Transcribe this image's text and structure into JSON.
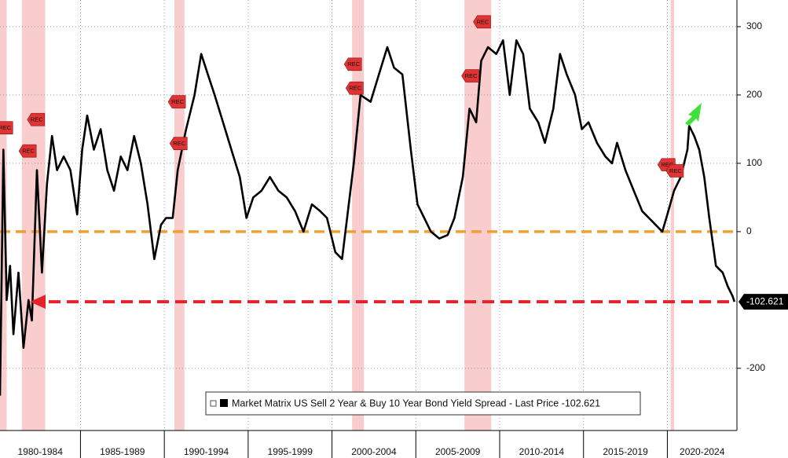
{
  "chart_data": {
    "type": "line",
    "series": [
      {
        "name": "Market Matrix US Sell 2 Year & Buy 10 Year Bond Yield Spread - Last Price -102.621",
        "color": "#000000",
        "x": [
          1980.2,
          1980.4,
          1980.6,
          1980.8,
          1981.0,
          1981.3,
          1981.6,
          1981.9,
          1982.1,
          1982.4,
          1982.7,
          1983.0,
          1983.3,
          1983.6,
          1984.0,
          1984.4,
          1984.8,
          1985.1,
          1985.4,
          1985.8,
          1986.2,
          1986.6,
          1987.0,
          1987.4,
          1987.8,
          1988.2,
          1988.6,
          1989.0,
          1989.4,
          1989.8,
          1990.1,
          1990.5,
          1990.8,
          1991.3,
          1991.8,
          1992.2,
          1992.6,
          1993.0,
          1993.5,
          1994.0,
          1994.5,
          1994.9,
          1995.3,
          1995.8,
          1996.3,
          1996.8,
          1997.3,
          1997.8,
          1998.3,
          1998.8,
          1999.3,
          1999.7,
          2000.2,
          2000.6,
          2000.9,
          2001.3,
          2001.7,
          2002.3,
          2002.8,
          2003.3,
          2003.7,
          2004.2,
          2004.7,
          2005.1,
          2005.5,
          2005.9,
          2006.4,
          2006.9,
          2007.3,
          2007.8,
          2008.2,
          2008.6,
          2008.9,
          2009.3,
          2009.8,
          2010.2,
          2010.6,
          2011.0,
          2011.4,
          2011.8,
          2012.3,
          2012.7,
          2013.2,
          2013.6,
          2014.0,
          2014.5,
          2014.9,
          2015.3,
          2015.8,
          2016.3,
          2016.7,
          2017.0,
          2017.5,
          2018.0,
          2018.5,
          2018.9,
          2019.3,
          2019.7,
          2020.0,
          2020.4,
          2020.8,
          2021.2,
          2021.3,
          2021.6,
          2021.9,
          2022.2,
          2022.5,
          2022.9,
          2023.3,
          2023.6,
          2023.9,
          2024.0
        ],
        "values": [
          -240,
          120,
          -100,
          -50,
          -150,
          -60,
          -170,
          -100,
          -130,
          90,
          -60,
          70,
          140,
          90,
          110,
          90,
          25,
          120,
          170,
          120,
          150,
          90,
          60,
          110,
          90,
          140,
          100,
          40,
          -40,
          10,
          20,
          20,
          90,
          150,
          200,
          260,
          230,
          200,
          160,
          120,
          80,
          20,
          50,
          60,
          80,
          60,
          50,
          30,
          0,
          40,
          30,
          20,
          -30,
          -40,
          20,
          100,
          200,
          190,
          230,
          270,
          240,
          230,
          120,
          40,
          20,
          0,
          -10,
          -5,
          20,
          80,
          180,
          160,
          250,
          270,
          260,
          280,
          200,
          280,
          260,
          180,
          160,
          130,
          180,
          260,
          230,
          200,
          150,
          160,
          130,
          110,
          100,
          130,
          90,
          60,
          30,
          20,
          10,
          0,
          25,
          60,
          80,
          120,
          155,
          140,
          120,
          80,
          20,
          -50,
          -60,
          -80,
          -95,
          -102.621
        ]
      }
    ],
    "last_price": -102.621,
    "recessions": [
      [
        1980.0,
        1980.6
      ],
      [
        1981.5,
        1982.9
      ],
      [
        1990.6,
        1991.2
      ],
      [
        2001.2,
        2001.9
      ],
      [
        2007.9,
        2009.5
      ],
      [
        2020.2,
        2020.4
      ]
    ],
    "annotations": [
      {
        "text": "REC",
        "x": 1980.4,
        "y": 152
      },
      {
        "text": "REC",
        "x": 1981.8,
        "y": 118
      },
      {
        "text": "REC",
        "x": 1982.3,
        "y": 164
      },
      {
        "text": "REC",
        "x": 1990.7,
        "y": 190
      },
      {
        "text": "REC",
        "x": 1990.8,
        "y": 129
      },
      {
        "text": "REC",
        "x": 2001.2,
        "y": 245
      },
      {
        "text": "REC",
        "x": 2001.3,
        "y": 210
      },
      {
        "text": "REC",
        "x": 2008.2,
        "y": 228
      },
      {
        "text": "REC",
        "x": 2008.9,
        "y": 307
      },
      {
        "text": "REC",
        "x": 2019.9,
        "y": 98
      },
      {
        "text": "REC",
        "x": 2020.4,
        "y": 89
      }
    ],
    "xlim": [
      1980.2,
      2024.15
    ],
    "xticks": [
      {
        "value": 1980,
        "label": "1980-1984"
      },
      {
        "value": 1985,
        "label": "1985-1989"
      },
      {
        "value": 1990,
        "label": "1990-1994"
      },
      {
        "value": 1995,
        "label": "1995-1999"
      },
      {
        "value": 2000,
        "label": "2000-2004"
      },
      {
        "value": 2005,
        "label": "2005-2009"
      },
      {
        "value": 2010,
        "label": "2010-2014"
      },
      {
        "value": 2015,
        "label": "2015-2019"
      },
      {
        "value": 2020,
        "label": "2020-2024"
      }
    ],
    "ylim": [
      -291,
      339
    ],
    "yticks": [
      -200,
      0,
      100,
      200,
      300
    ],
    "grid": true
  }
}
